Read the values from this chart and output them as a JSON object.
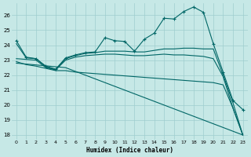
{
  "xlabel": "Humidex (Indice chaleur)",
  "xlim": [
    -0.5,
    23.5
  ],
  "ylim": [
    17.7,
    26.8
  ],
  "yticks": [
    18,
    19,
    20,
    21,
    22,
    23,
    24,
    25,
    26
  ],
  "xticks": [
    0,
    1,
    2,
    3,
    4,
    5,
    6,
    7,
    8,
    9,
    10,
    11,
    12,
    13,
    14,
    15,
    16,
    17,
    18,
    19,
    20,
    21,
    22,
    23
  ],
  "background_color": "#c6e8e6",
  "grid_color": "#9ecece",
  "line_color": "#006666",
  "series": [
    {
      "x": [
        0,
        1,
        2,
        3,
        4,
        5,
        6,
        7,
        8,
        9,
        10,
        11,
        12,
        13,
        14,
        15,
        16,
        17,
        18,
        19,
        20,
        21,
        22,
        23
      ],
      "y": [
        24.3,
        23.2,
        23.1,
        22.6,
        22.4,
        23.15,
        23.35,
        23.5,
        23.55,
        24.5,
        24.3,
        24.25,
        23.6,
        24.4,
        24.8,
        25.8,
        25.75,
        26.25,
        26.55,
        26.2,
        24.1,
        22.2,
        20.3,
        19.7
      ],
      "marker": "+",
      "markersize": 3.5,
      "linewidth": 0.8,
      "with_marker": true
    },
    {
      "x": [
        0,
        1,
        2,
        3,
        4,
        5,
        6,
        7,
        8,
        9,
        10,
        11,
        12,
        13,
        14,
        15,
        16,
        17,
        18,
        19,
        20,
        21,
        22,
        23
      ],
      "y": [
        24.1,
        23.15,
        23.1,
        22.55,
        22.35,
        23.1,
        23.3,
        23.45,
        23.5,
        23.6,
        23.6,
        23.6,
        23.55,
        23.55,
        23.65,
        23.75,
        23.75,
        23.8,
        23.8,
        23.75,
        23.75,
        22.0,
        20.15,
        18.0
      ],
      "marker": null,
      "linewidth": 0.8,
      "with_marker": false
    },
    {
      "x": [
        0,
        1,
        2,
        3,
        4,
        5,
        6,
        7,
        8,
        9,
        10,
        11,
        12,
        13,
        14,
        15,
        16,
        17,
        18,
        19,
        20,
        21,
        22,
        23
      ],
      "y": [
        23.1,
        23.05,
        23.0,
        22.5,
        22.35,
        23.0,
        23.2,
        23.3,
        23.35,
        23.4,
        23.4,
        23.35,
        23.3,
        23.3,
        23.35,
        23.4,
        23.35,
        23.35,
        23.3,
        23.25,
        23.1,
        21.9,
        19.8,
        18.0
      ],
      "marker": null,
      "linewidth": 0.8,
      "with_marker": false
    },
    {
      "x": [
        0,
        1,
        2,
        3,
        4,
        5,
        6,
        7,
        8,
        9,
        10,
        11,
        12,
        13,
        14,
        15,
        16,
        17,
        18,
        19,
        20,
        21,
        22,
        23
      ],
      "y": [
        22.9,
        22.7,
        22.6,
        22.45,
        22.3,
        22.3,
        22.2,
        22.15,
        22.1,
        22.05,
        22.0,
        21.95,
        21.9,
        21.85,
        21.8,
        21.75,
        21.7,
        21.65,
        21.6,
        21.55,
        21.5,
        21.35,
        19.8,
        18.0
      ],
      "marker": null,
      "linewidth": 0.8,
      "with_marker": false
    },
    {
      "x": [
        0,
        5,
        23
      ],
      "y": [
        22.8,
        22.5,
        18.0
      ],
      "marker": null,
      "linewidth": 0.8,
      "with_marker": false
    }
  ]
}
